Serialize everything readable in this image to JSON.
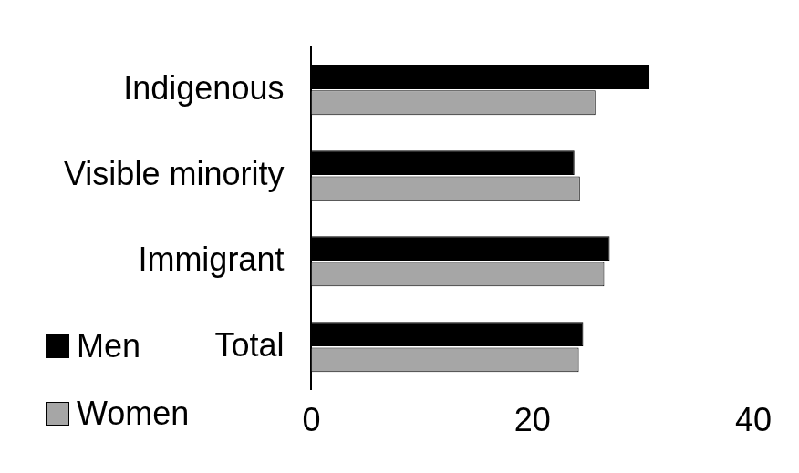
{
  "chart_data": {
    "type": "bar",
    "orientation": "horizontal",
    "categories": [
      "Indigenous",
      "Visible minority",
      "Immigrant",
      "Total"
    ],
    "series": [
      {
        "name": "Men",
        "color": "#000000",
        "values": [
          30.6,
          23.8,
          27.0,
          24.6
        ]
      },
      {
        "name": "Women",
        "color": "#a6a6a6",
        "values": [
          25.7,
          24.3,
          26.5,
          24.2
        ]
      }
    ],
    "xlim": [
      0,
      40
    ],
    "xticks": [
      0,
      20,
      40
    ],
    "grid": false,
    "legend": "lower left"
  }
}
